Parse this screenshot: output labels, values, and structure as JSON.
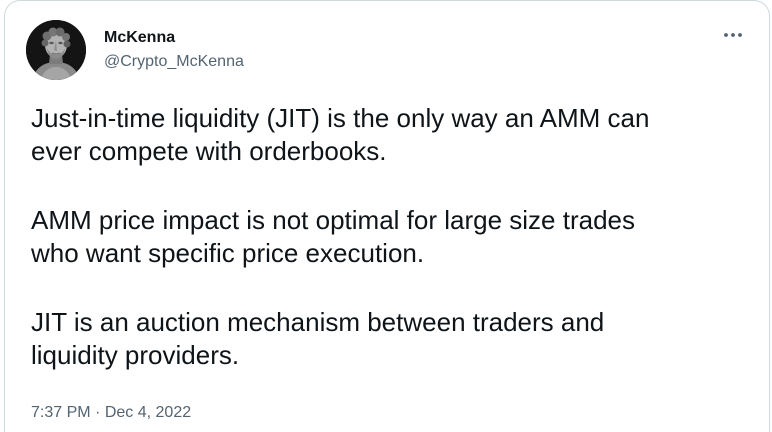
{
  "tweet": {
    "author": {
      "display_name": "McKenna",
      "handle": "@Crypto_McKenna"
    },
    "more_icon": "more-horizontal-icon",
    "paragraphs": [
      "Just-in-time liquidity (JIT) is the only way an AMM can\never compete with orderbooks.",
      "AMM price impact is not optimal for large size trades\nwho want specific price execution.",
      "JIT is an auction mechanism between traders and\nliquidity providers."
    ],
    "time": "7:37 PM",
    "separator": "·",
    "date": "Dec 4, 2022"
  },
  "colors": {
    "text_primary": "#0f1419",
    "text_secondary": "#536471",
    "border": "#cfd9de"
  }
}
